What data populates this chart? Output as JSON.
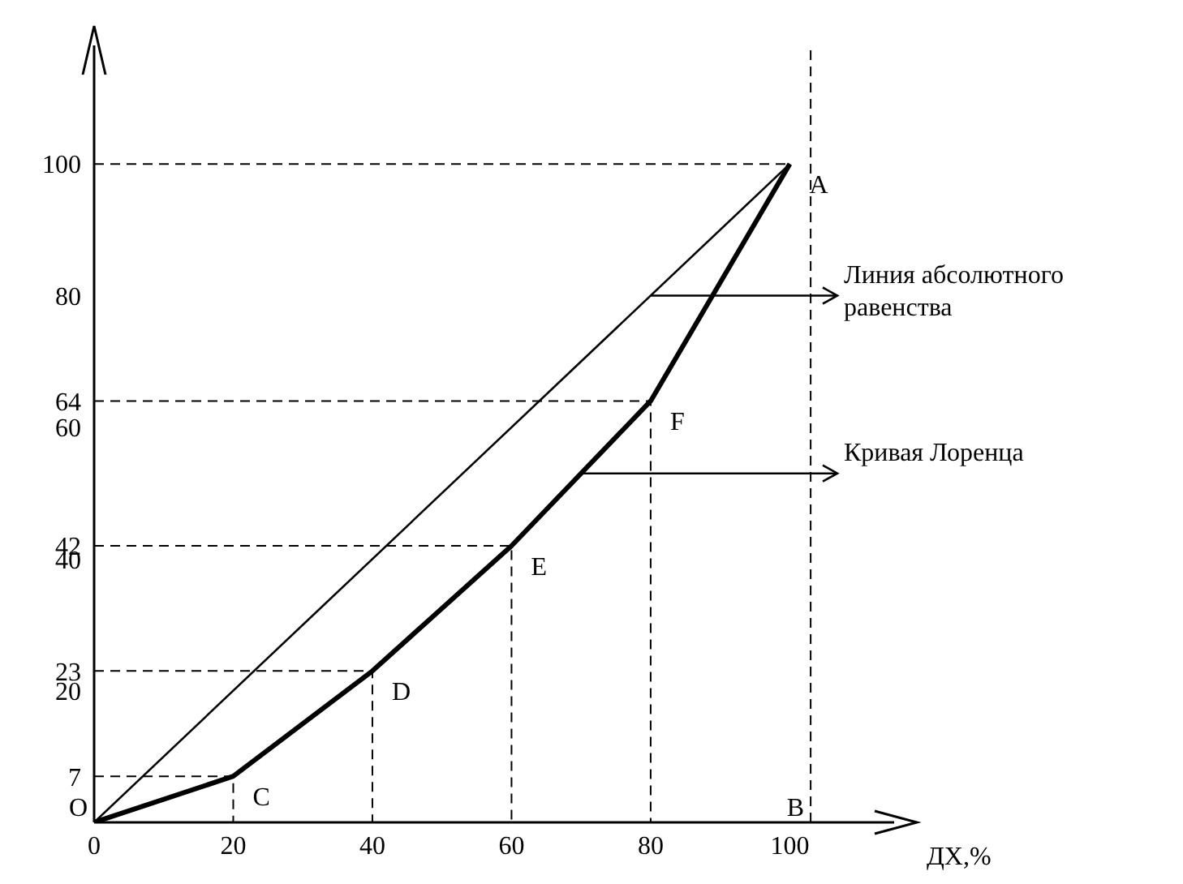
{
  "chart_data": {
    "type": "line",
    "xlabel": "ДХ,%",
    "series": [
      {
        "color": "#000000",
        "x": [
          0,
          100
        ],
        "values": [
          0,
          100
        ],
        "line_style": "solid"
      },
      {
        "color": "#000000",
        "x": [
          0,
          20,
          40,
          60,
          80,
          100
        ],
        "values": [
          0,
          7,
          23,
          42,
          64,
          100
        ],
        "line_style": "solid"
      },
      {
        "color": "#000000",
        "x": [
          0,
          20,
          20
        ],
        "values": [
          7,
          7,
          0
        ],
        "line_style": "dashed"
      },
      {
        "color": "#000000",
        "x": [
          0,
          40,
          40
        ],
        "values": [
          23,
          23,
          0
        ],
        "line_style": "dashed"
      },
      {
        "color": "#000000",
        "x": [
          0,
          60,
          60
        ],
        "values": [
          42,
          42,
          0
        ],
        "line_style": "dashed"
      },
      {
        "color": "#000000",
        "x": [
          0,
          80,
          80
        ],
        "values": [
          64,
          64,
          0
        ],
        "line_style": "dashed"
      },
      {
        "color": "#000000",
        "x": [
          0,
          100
        ],
        "values": [
          100,
          100
        ],
        "line_style": "dashed"
      }
    ],
    "ref_lines": [
      {
        "axis": "x",
        "value": 103,
        "color": "#000000",
        "line_style": "dashed"
      }
    ],
    "xlim": [
      0,
      115
    ],
    "ylim": [
      0,
      118
    ],
    "xticks": [
      0,
      20,
      40,
      60,
      80,
      100
    ],
    "yticks": [
      7,
      20,
      23,
      40,
      42,
      60,
      64,
      80,
      100
    ],
    "grid": false,
    "marker": "none",
    "annotations": [
      {
        "text": "O",
        "x": 0,
        "y": 0
      },
      {
        "text": "C",
        "x": 20,
        "y": 7
      },
      {
        "text": "D",
        "x": 40,
        "y": 23
      },
      {
        "text": "E",
        "x": 60,
        "y": 42
      },
      {
        "text": "F",
        "x": 80,
        "y": 64
      },
      {
        "text": "A",
        "x": 100,
        "y": 100
      },
      {
        "text": "B",
        "x": 103,
        "y": 0
      },
      {
        "text": "Линия абсолютного равенства",
        "x": 80,
        "y": 80
      },
      {
        "text": "Кривая Лоренца",
        "x": 70,
        "y": 53
      }
    ]
  }
}
